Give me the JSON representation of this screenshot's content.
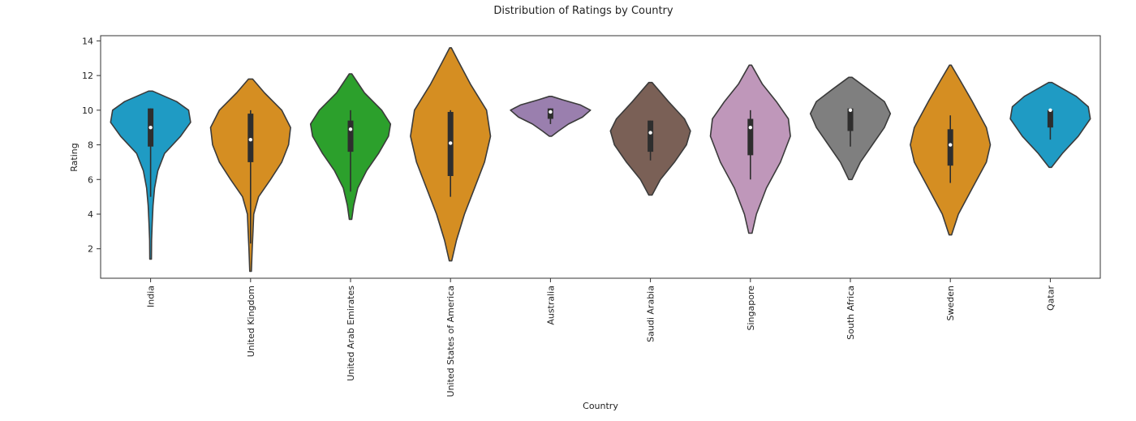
{
  "chart_data": {
    "type": "violin",
    "title": "Distribution of Ratings by Country",
    "xlabel": "Country",
    "ylabel": "Rating",
    "ylim": [
      0.3,
      14.3
    ],
    "yticks": [
      2,
      4,
      6,
      8,
      10,
      12,
      14
    ],
    "grid": false,
    "legend": "none",
    "categories": [
      "India",
      "United Kingdom",
      "United Arab Emirates",
      "United States of America",
      "Australia",
      "Saudi Arabia",
      "Singapore",
      "South Africa",
      "Sweden",
      "Qatar"
    ],
    "series": [
      {
        "category": "India",
        "color": "#1f9bc4",
        "min": 1.4,
        "max": 11.1,
        "q1": 7.9,
        "median": 9.0,
        "q3": 10.1,
        "whisker_low": 5.0,
        "whisker_high": 10.1,
        "density": [
          [
            1.4,
            0.02
          ],
          [
            2.5,
            0.025
          ],
          [
            3.5,
            0.04
          ],
          [
            4.5,
            0.06
          ],
          [
            5.5,
            0.1
          ],
          [
            6.5,
            0.18
          ],
          [
            7.5,
            0.35
          ],
          [
            8.5,
            0.75
          ],
          [
            9.3,
            1.0
          ],
          [
            10.0,
            0.95
          ],
          [
            10.5,
            0.65
          ],
          [
            11.1,
            0.05
          ]
        ]
      },
      {
        "category": "United Kingdom",
        "color": "#d58e22",
        "min": 0.7,
        "max": 11.8,
        "q1": 7.0,
        "median": 8.3,
        "q3": 9.8,
        "whisker_low": 2.3,
        "whisker_high": 10.0,
        "density": [
          [
            0.7,
            0.02
          ],
          [
            2.0,
            0.04
          ],
          [
            3.0,
            0.06
          ],
          [
            4.0,
            0.08
          ],
          [
            5.0,
            0.2
          ],
          [
            6.0,
            0.5
          ],
          [
            7.0,
            0.78
          ],
          [
            8.0,
            0.95
          ],
          [
            9.0,
            1.0
          ],
          [
            10.0,
            0.78
          ],
          [
            11.0,
            0.35
          ],
          [
            11.8,
            0.05
          ]
        ]
      },
      {
        "category": "United Arab Emirates",
        "color": "#2ca02c",
        "min": 3.7,
        "max": 12.1,
        "q1": 7.6,
        "median": 8.9,
        "q3": 9.4,
        "whisker_low": 5.3,
        "whisker_high": 10.0,
        "density": [
          [
            3.7,
            0.03
          ],
          [
            4.5,
            0.08
          ],
          [
            5.5,
            0.18
          ],
          [
            6.5,
            0.4
          ],
          [
            7.5,
            0.7
          ],
          [
            8.5,
            0.95
          ],
          [
            9.2,
            1.0
          ],
          [
            10.0,
            0.78
          ],
          [
            11.0,
            0.35
          ],
          [
            12.1,
            0.03
          ]
        ]
      },
      {
        "category": "United States of America",
        "color": "#d58e22",
        "min": 1.3,
        "max": 13.6,
        "q1": 6.2,
        "median": 8.1,
        "q3": 9.9,
        "whisker_low": 5.0,
        "whisker_high": 10.0,
        "density": [
          [
            1.3,
            0.03
          ],
          [
            2.5,
            0.15
          ],
          [
            4.0,
            0.35
          ],
          [
            5.5,
            0.6
          ],
          [
            7.0,
            0.85
          ],
          [
            8.5,
            1.0
          ],
          [
            10.0,
            0.9
          ],
          [
            11.5,
            0.5
          ],
          [
            12.8,
            0.2
          ],
          [
            13.6,
            0.02
          ]
        ]
      },
      {
        "category": "Australia",
        "color": "#9a7fae",
        "min": 8.5,
        "max": 10.8,
        "q1": 9.5,
        "median": 9.9,
        "q3": 10.1,
        "whisker_low": 9.2,
        "whisker_high": 10.1,
        "density": [
          [
            8.5,
            0.03
          ],
          [
            8.8,
            0.2
          ],
          [
            9.2,
            0.45
          ],
          [
            9.6,
            0.8
          ],
          [
            10.0,
            1.0
          ],
          [
            10.3,
            0.75
          ],
          [
            10.6,
            0.3
          ],
          [
            10.8,
            0.03
          ]
        ]
      },
      {
        "category": "Saudi Arabia",
        "color": "#7a6056",
        "min": 5.1,
        "max": 11.6,
        "q1": 7.6,
        "median": 8.7,
        "q3": 9.4,
        "whisker_low": 7.1,
        "whisker_high": 9.4,
        "density": [
          [
            5.1,
            0.04
          ],
          [
            6.0,
            0.25
          ],
          [
            7.0,
            0.6
          ],
          [
            8.0,
            0.9
          ],
          [
            8.8,
            1.0
          ],
          [
            9.5,
            0.85
          ],
          [
            10.5,
            0.45
          ],
          [
            11.6,
            0.04
          ]
        ]
      },
      {
        "category": "Singapore",
        "color": "#bf97ba",
        "min": 2.9,
        "max": 12.6,
        "q1": 7.4,
        "median": 9.0,
        "q3": 9.5,
        "whisker_low": 6.0,
        "whisker_high": 10.0,
        "density": [
          [
            2.9,
            0.04
          ],
          [
            4.0,
            0.15
          ],
          [
            5.5,
            0.4
          ],
          [
            7.0,
            0.75
          ],
          [
            8.5,
            1.0
          ],
          [
            9.5,
            0.95
          ],
          [
            10.5,
            0.65
          ],
          [
            11.5,
            0.3
          ],
          [
            12.6,
            0.03
          ]
        ]
      },
      {
        "category": "South Africa",
        "color": "#7f7f7f",
        "min": 6.0,
        "max": 11.9,
        "q1": 8.8,
        "median": 10.0,
        "q3": 10.1,
        "whisker_low": 7.9,
        "whisker_high": 10.1,
        "density": [
          [
            6.0,
            0.04
          ],
          [
            7.0,
            0.25
          ],
          [
            8.0,
            0.55
          ],
          [
            9.0,
            0.85
          ],
          [
            9.8,
            1.0
          ],
          [
            10.5,
            0.85
          ],
          [
            11.2,
            0.45
          ],
          [
            11.9,
            0.04
          ]
        ]
      },
      {
        "category": "Sweden",
        "color": "#d58e22",
        "min": 2.8,
        "max": 12.6,
        "q1": 6.8,
        "median": 8.0,
        "q3": 8.9,
        "whisker_low": 5.8,
        "whisker_high": 9.7,
        "density": [
          [
            2.8,
            0.03
          ],
          [
            4.0,
            0.2
          ],
          [
            5.5,
            0.55
          ],
          [
            7.0,
            0.9
          ],
          [
            8.0,
            1.0
          ],
          [
            9.0,
            0.9
          ],
          [
            10.5,
            0.55
          ],
          [
            11.7,
            0.25
          ],
          [
            12.6,
            0.02
          ]
        ]
      },
      {
        "category": "Qatar",
        "color": "#1f9bc4",
        "min": 6.7,
        "max": 11.6,
        "q1": 9.0,
        "median": 10.0,
        "q3": 10.0,
        "whisker_low": 8.3,
        "whisker_high": 10.0,
        "density": [
          [
            6.7,
            0.03
          ],
          [
            7.5,
            0.3
          ],
          [
            8.5,
            0.7
          ],
          [
            9.5,
            1.0
          ],
          [
            10.2,
            0.95
          ],
          [
            10.8,
            0.65
          ],
          [
            11.6,
            0.04
          ]
        ]
      }
    ]
  }
}
